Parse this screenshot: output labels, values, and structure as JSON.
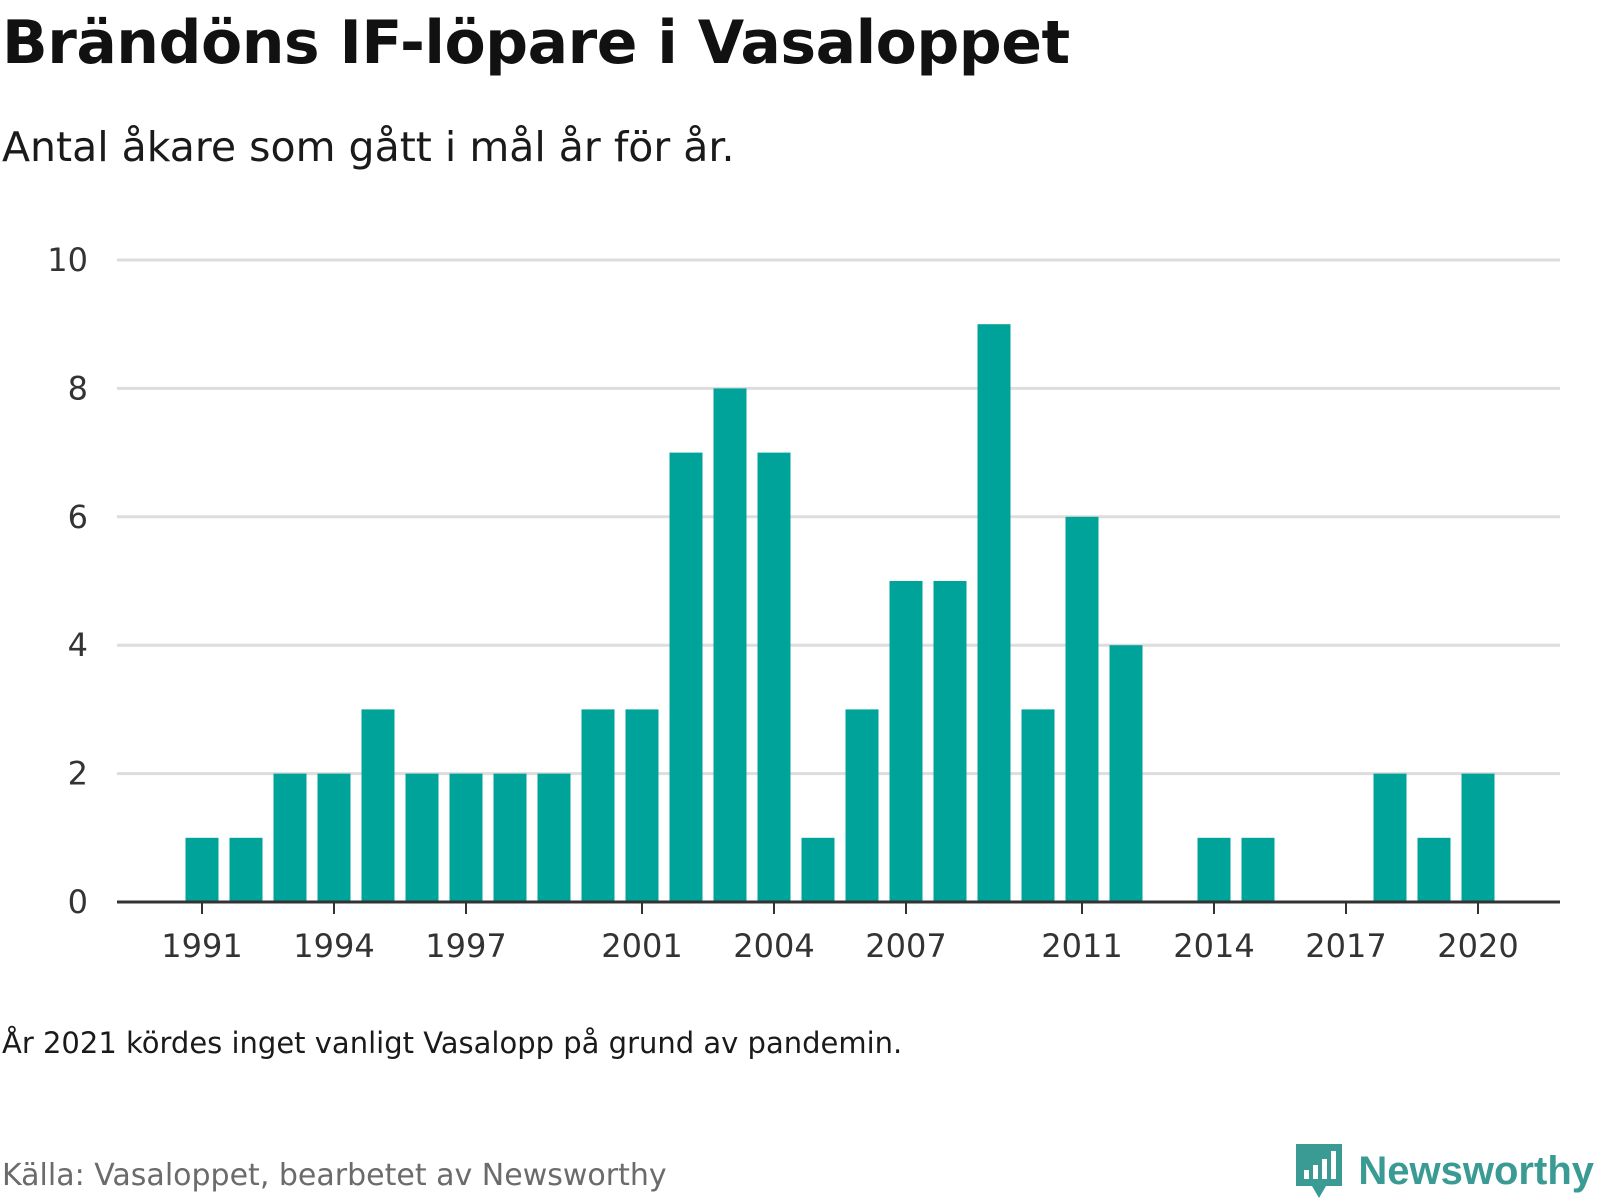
{
  "title": "Brändöns IF-löpare i Vasaloppet",
  "subtitle": "Antal åkare som gått i mål år för år.",
  "note": "År 2021 kördes inget vanligt Vasalopp på grund av pandemin.",
  "source": "Källa: Vasaloppet, bearbetet av Newsworthy",
  "brand": {
    "name": "Newsworthy",
    "icon": "newsworthy-logo-icon"
  },
  "colors": {
    "bar": "#00a39a",
    "grid": "#dddddd",
    "axis": "#333333",
    "brand": "#3a9a94"
  },
  "chart_data": {
    "type": "bar",
    "categories": [
      1991,
      1992,
      1993,
      1994,
      1995,
      1996,
      1997,
      1998,
      1999,
      2000,
      2001,
      2002,
      2003,
      2004,
      2005,
      2006,
      2007,
      2008,
      2009,
      2010,
      2011,
      2012,
      2013,
      2014,
      2015,
      2016,
      2017,
      2018,
      2019,
      2020
    ],
    "values": [
      1,
      1,
      2,
      2,
      3,
      2,
      2,
      2,
      2,
      3,
      3,
      7,
      8,
      7,
      1,
      3,
      5,
      5,
      9,
      3,
      6,
      4,
      0,
      1,
      1,
      0,
      0,
      2,
      1,
      2
    ],
    "x_tick_labels": [
      "1991",
      "1994",
      "1997",
      "2001",
      "2004",
      "2007",
      "2011",
      "2014",
      "2017",
      "2020"
    ],
    "y_ticks": [
      0,
      2,
      4,
      6,
      8,
      10
    ],
    "ylim": [
      0,
      10
    ],
    "grid": true
  }
}
